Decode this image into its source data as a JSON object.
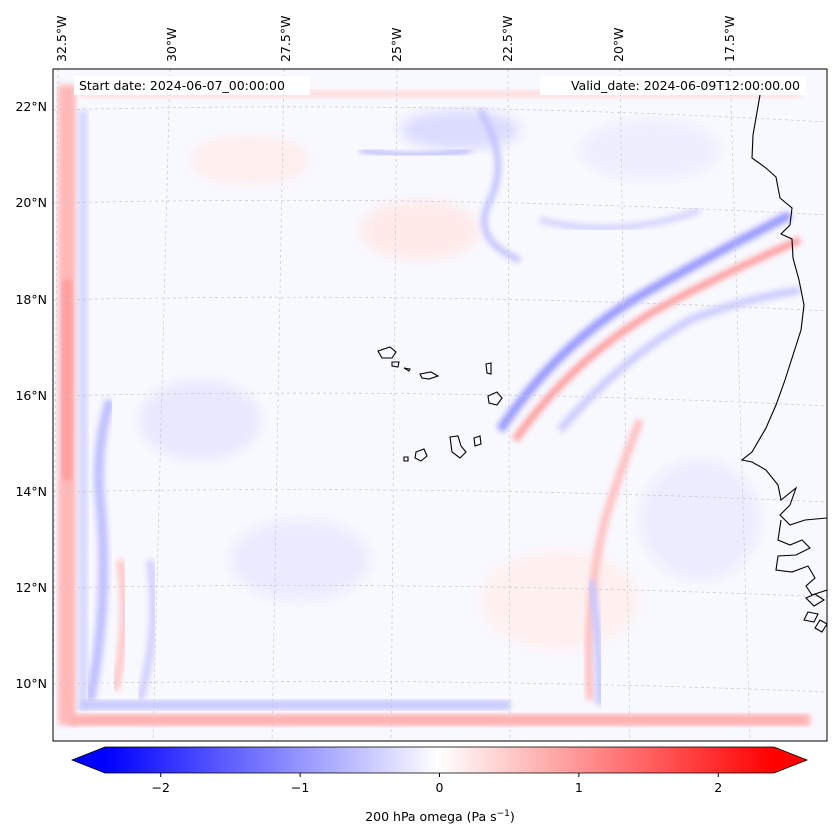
{
  "map": {
    "start_label": "Start date: 2024-06-07_00:00:00",
    "valid_label": "Valid_date: 2024-06-09T12:00:00.00",
    "lon_labels": [
      "32.5°W",
      "30°W",
      "27.5°W",
      "25°W",
      "22.5°W",
      "20°W",
      "17.5°W"
    ],
    "lat_labels": [
      "22°N",
      "20°N",
      "18°N",
      "16°N",
      "14°N",
      "12°N",
      "10°N"
    ],
    "field": "200 hPa omega",
    "land_outline_color": "#000000",
    "grid_color": "#bbbbbb"
  },
  "colorbar": {
    "label_main": "200 hPa omega (Pa s",
    "label_exp": "−1",
    "label_tail": ")",
    "ticks": [
      {
        "value": -2,
        "label": "−2"
      },
      {
        "value": -1,
        "label": "−1"
      },
      {
        "value": 0,
        "label": "0"
      },
      {
        "value": 1,
        "label": "1"
      },
      {
        "value": 2,
        "label": "2"
      }
    ],
    "range": [
      -2.65,
      2.65
    ],
    "color_low": "#0000ff",
    "color_mid": "#ffffff",
    "color_high": "#ff0000",
    "extend": "both"
  }
}
